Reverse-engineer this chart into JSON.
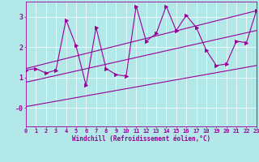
{
  "xlabel": "Windchill (Refroidissement éolien,°C)",
  "bg_color": "#b2e8e8",
  "line_color": "#990099",
  "grid_color": "#ffffff",
  "xlim": [
    0,
    23
  ],
  "ylim": [
    -0.6,
    3.5
  ],
  "xticks": [
    0,
    1,
    2,
    3,
    4,
    5,
    6,
    7,
    8,
    9,
    10,
    11,
    12,
    13,
    14,
    15,
    16,
    17,
    18,
    19,
    20,
    21,
    22,
    23
  ],
  "yticks": [
    0,
    1,
    2,
    3
  ],
  "ytick_labels": [
    "-0",
    "1",
    "2",
    "3"
  ],
  "main_x": [
    0,
    1,
    2,
    3,
    4,
    5,
    6,
    7,
    8,
    9,
    10,
    11,
    12,
    13,
    14,
    15,
    16,
    17,
    18,
    19,
    20,
    21,
    22,
    23
  ],
  "main_y": [
    1.25,
    1.3,
    1.15,
    1.25,
    2.9,
    2.05,
    0.75,
    2.65,
    1.3,
    1.1,
    1.05,
    3.35,
    2.2,
    2.45,
    3.35,
    2.55,
    3.05,
    2.65,
    1.9,
    1.4,
    1.45,
    2.2,
    2.15,
    3.2
  ],
  "line1_x": [
    0,
    23
  ],
  "line1_y": [
    1.3,
    3.2
  ],
  "line2_x": [
    0,
    23
  ],
  "line2_y": [
    0.85,
    2.55
  ],
  "line3_x": [
    0,
    23
  ],
  "line3_y": [
    0.05,
    1.4
  ],
  "tick_fontsize": 5,
  "label_fontsize": 5.5,
  "linewidth": 0.8,
  "marker_size": 3
}
